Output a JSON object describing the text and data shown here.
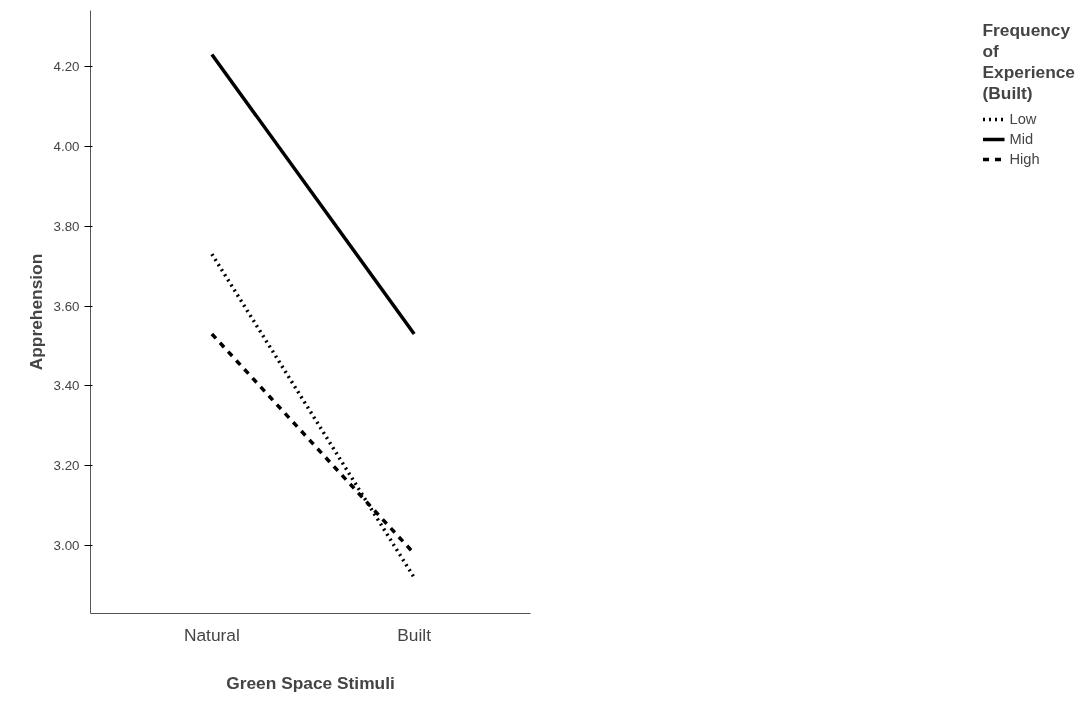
{
  "chart_data": {
    "type": "line",
    "xlabel": "Green Space Stimuli",
    "ylabel": "Apprehension",
    "legend_title": "Frequency of Experience (Built)",
    "categories": [
      "Natural",
      "Built"
    ],
    "series": [
      {
        "name": "Low",
        "color": "#000000",
        "line_style": "dotted",
        "values": [
          3.73,
          2.92
        ]
      },
      {
        "name": "Mid",
        "color": "#000000",
        "line_style": "solid",
        "values": [
          4.23,
          3.53
        ]
      },
      {
        "name": "High",
        "color": "#000000",
        "line_style": "dashed",
        "values": [
          3.53,
          2.98
        ]
      }
    ],
    "ylim": [
      2.83,
      4.34
    ],
    "yticks": [
      {
        "value": 3.0,
        "label": "3.00"
      },
      {
        "value": 3.2,
        "label": "3.20"
      },
      {
        "value": 3.4,
        "label": "3.40"
      },
      {
        "value": 3.6,
        "label": "3.60"
      },
      {
        "value": 3.8,
        "label": "3.80"
      },
      {
        "value": 4.0,
        "label": "4.00"
      },
      {
        "value": 4.2,
        "label": "4.20"
      }
    ],
    "grid": false,
    "legend": "top right"
  }
}
